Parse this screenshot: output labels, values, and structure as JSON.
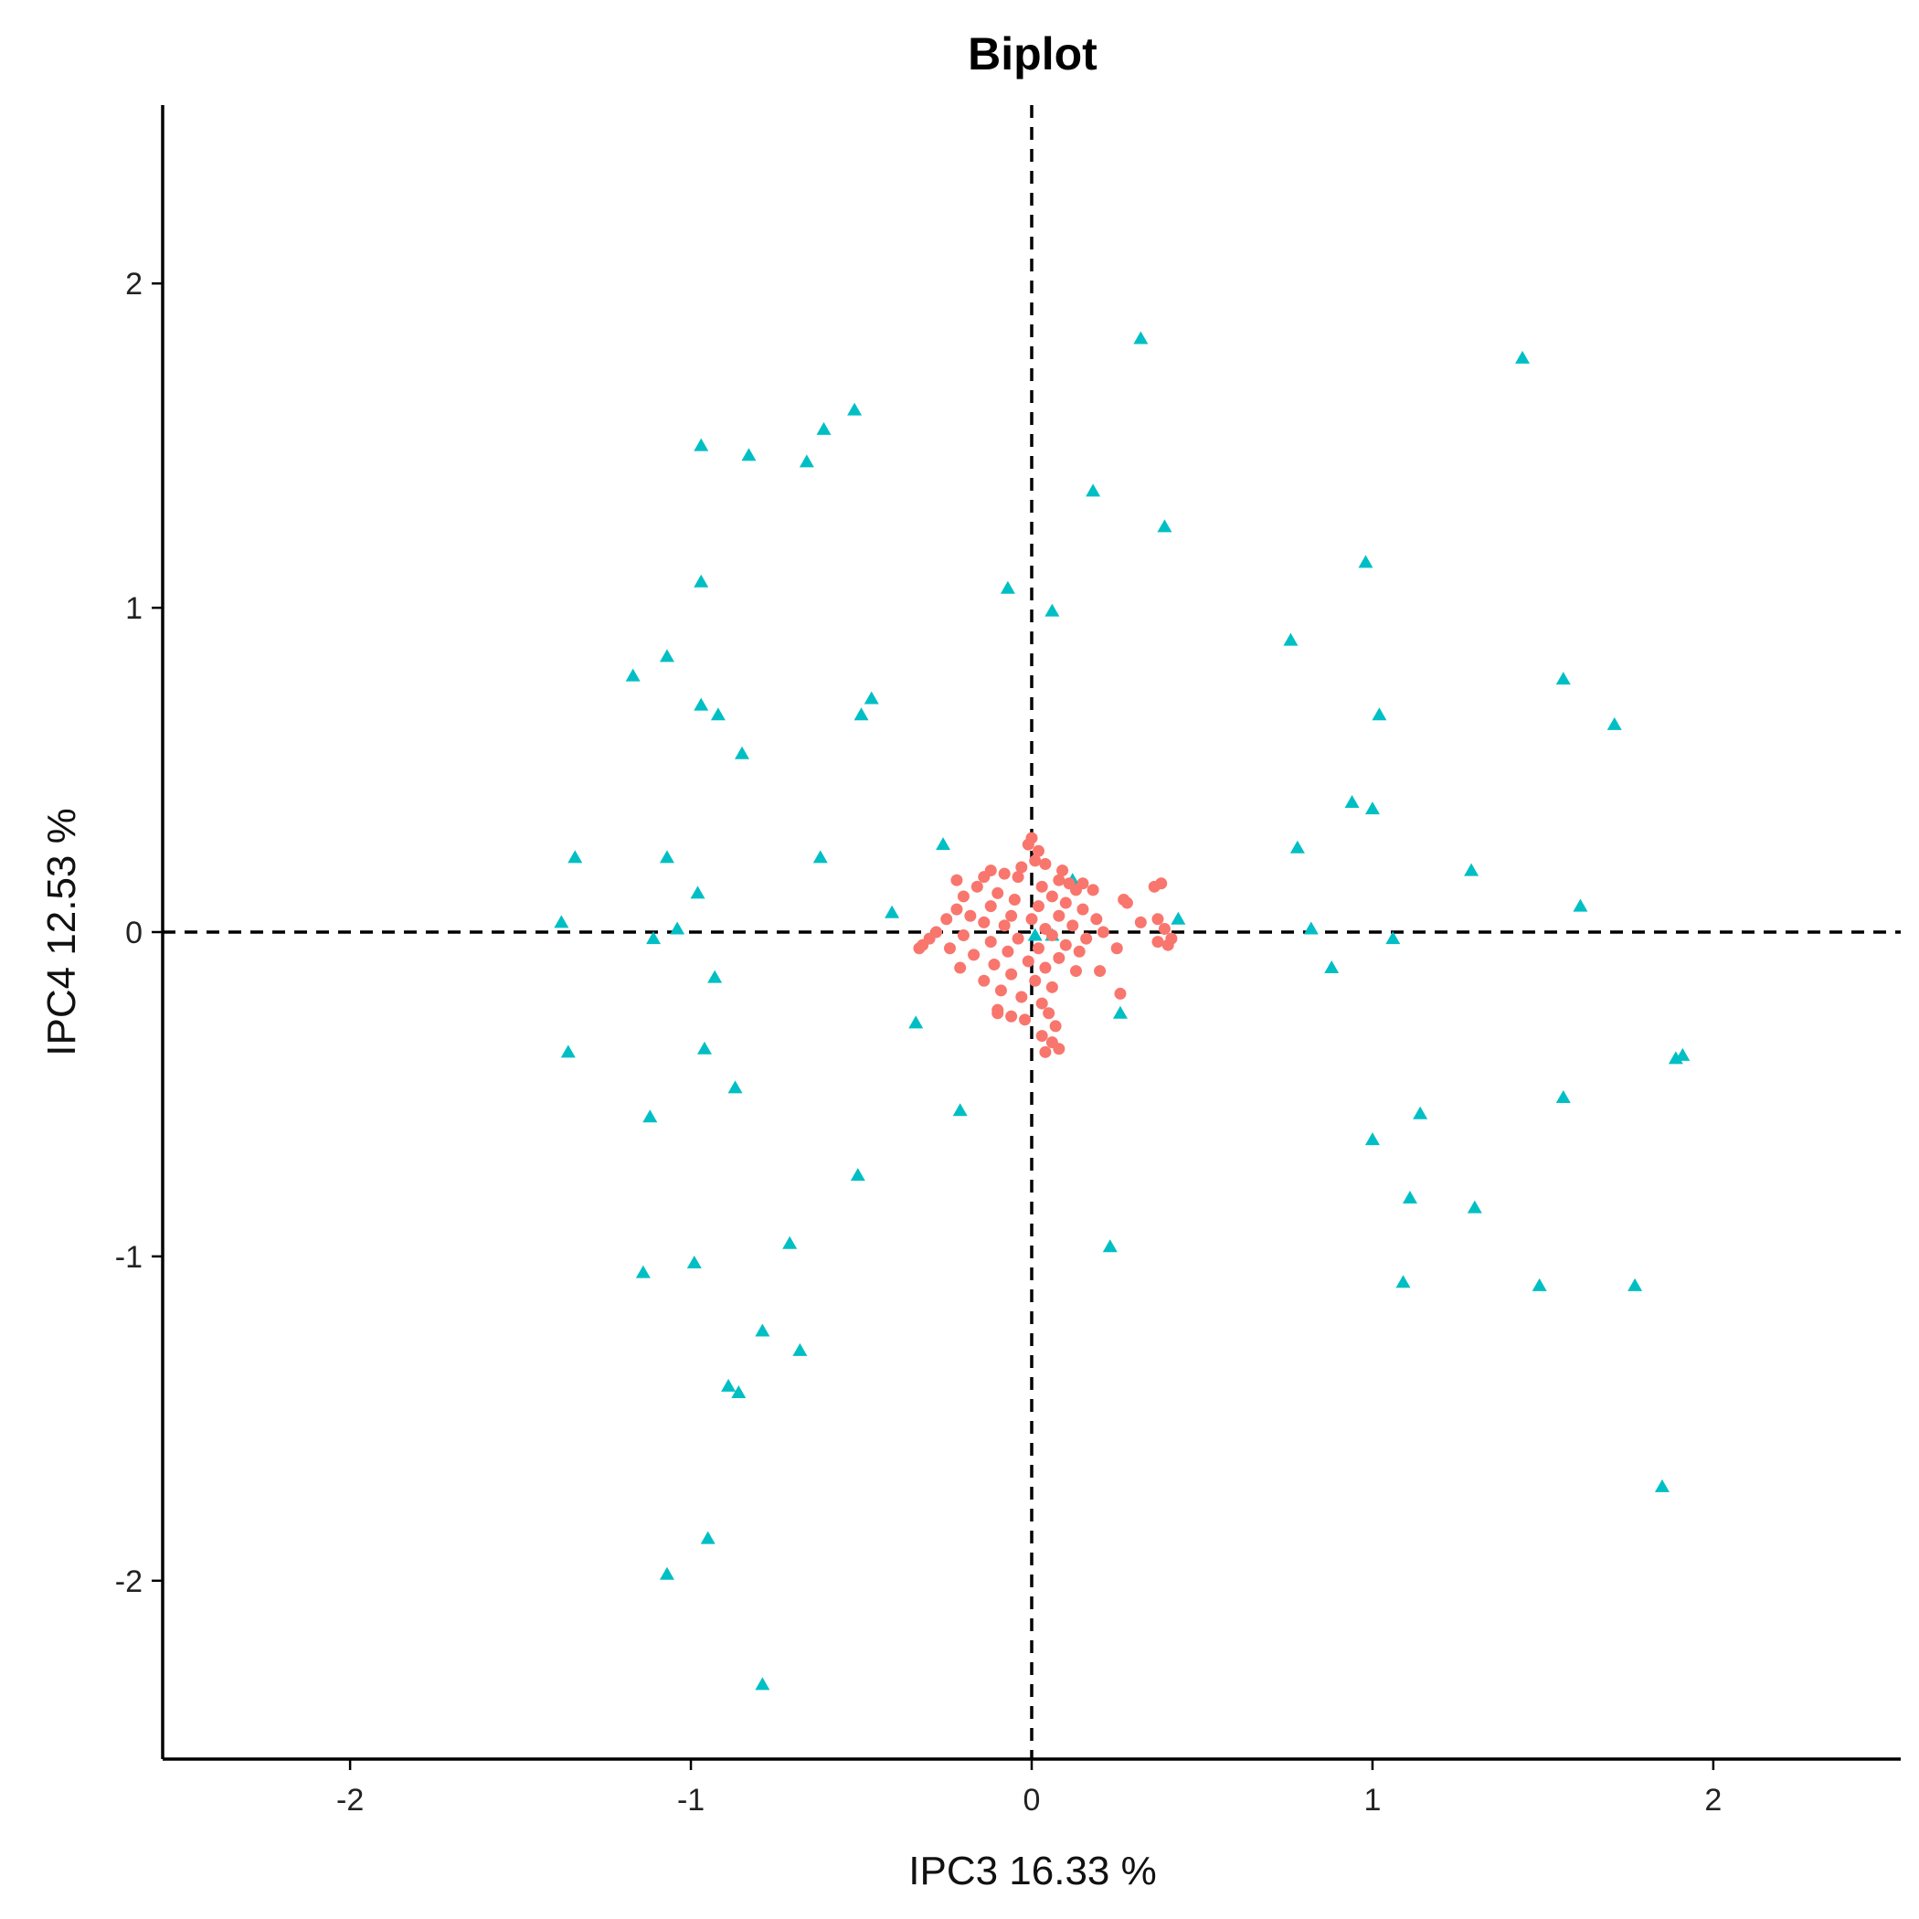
{
  "chart_data": {
    "type": "scatter",
    "title": "Biplot",
    "xlabel": "IPC3 16.33 %",
    "ylabel": "IPC4 12.53 %",
    "xlim": [
      -2.55,
      2.55
    ],
    "ylim": [
      -2.55,
      2.55
    ],
    "xticks": [
      -2,
      -1,
      0,
      1,
      2
    ],
    "yticks": [
      -2,
      -1,
      0,
      1,
      2
    ],
    "xtick_labels": [
      "-2",
      "-1",
      "0",
      "1",
      "2"
    ],
    "ytick_labels": [
      "-2",
      "-1",
      "0",
      "1",
      "2"
    ],
    "reference_lines": {
      "x": 0,
      "y": 0,
      "style": "dashed"
    },
    "grid": false,
    "legend": "none",
    "series": [
      {
        "marker": "triangle",
        "color": "#00BFC4",
        "points": [
          [
            0.32,
            1.83
          ],
          [
            1.44,
            1.77
          ],
          [
            -0.52,
            1.61
          ],
          [
            -0.61,
            1.55
          ],
          [
            -0.66,
            1.45
          ],
          [
            -0.83,
            1.47
          ],
          [
            -0.97,
            1.5
          ],
          [
            0.18,
            1.36
          ],
          [
            0.39,
            1.25
          ],
          [
            -0.07,
            1.06
          ],
          [
            0.06,
            0.99
          ],
          [
            0.98,
            1.14
          ],
          [
            -0.97,
            1.08
          ],
          [
            0.76,
            0.9
          ],
          [
            -1.07,
            0.85
          ],
          [
            -1.17,
            0.79
          ],
          [
            1.56,
            0.78
          ],
          [
            -0.97,
            0.7
          ],
          [
            -0.92,
            0.67
          ],
          [
            -0.47,
            0.72
          ],
          [
            -0.5,
            0.67
          ],
          [
            1.02,
            0.67
          ],
          [
            1.71,
            0.64
          ],
          [
            -0.85,
            0.55
          ],
          [
            0.94,
            0.4
          ],
          [
            1.0,
            0.38
          ],
          [
            -0.26,
            0.27
          ],
          [
            0.78,
            0.26
          ],
          [
            -1.34,
            0.23
          ],
          [
            -1.07,
            0.23
          ],
          [
            -0.62,
            0.23
          ],
          [
            1.29,
            0.19
          ],
          [
            0.12,
            0.16
          ],
          [
            -0.98,
            0.12
          ],
          [
            1.61,
            0.08
          ],
          [
            -0.41,
            0.06
          ],
          [
            0.43,
            0.04
          ],
          [
            -1.38,
            0.03
          ],
          [
            -1.04,
            0.01
          ],
          [
            0.82,
            0.01
          ],
          [
            0.01,
            -0.01
          ],
          [
            0.06,
            -0.01
          ],
          [
            -1.11,
            -0.02
          ],
          [
            1.06,
            -0.02
          ],
          [
            0.88,
            -0.11
          ],
          [
            -0.93,
            -0.14
          ],
          [
            0.26,
            -0.25
          ],
          [
            -0.34,
            -0.28
          ],
          [
            -0.96,
            -0.36
          ],
          [
            -1.36,
            -0.37
          ],
          [
            1.89,
            -0.39
          ],
          [
            1.91,
            -0.38
          ],
          [
            -0.87,
            -0.48
          ],
          [
            1.56,
            -0.51
          ],
          [
            -0.21,
            -0.55
          ],
          [
            1.14,
            -0.56
          ],
          [
            -1.12,
            -0.57
          ],
          [
            1.0,
            -0.64
          ],
          [
            -0.51,
            -0.75
          ],
          [
            1.11,
            -0.82
          ],
          [
            1.3,
            -0.85
          ],
          [
            -0.71,
            -0.96
          ],
          [
            0.23,
            -0.97
          ],
          [
            -0.99,
            -1.02
          ],
          [
            -1.14,
            -1.05
          ],
          [
            1.09,
            -1.08
          ],
          [
            1.49,
            -1.09
          ],
          [
            1.77,
            -1.09
          ],
          [
            -0.79,
            -1.23
          ],
          [
            -0.68,
            -1.29
          ],
          [
            -0.89,
            -1.4
          ],
          [
            -0.86,
            -1.42
          ],
          [
            1.85,
            -1.71
          ],
          [
            -0.95,
            -1.87
          ],
          [
            -1.07,
            -1.98
          ],
          [
            -0.79,
            -2.32
          ]
        ]
      },
      {
        "marker": "circle",
        "color": "#F8766D",
        "points": [
          [
            0.0,
            0.29
          ],
          [
            -0.01,
            0.27
          ],
          [
            0.02,
            0.25
          ],
          [
            0.01,
            0.22
          ],
          [
            -0.03,
            0.2
          ],
          [
            0.04,
            0.21
          ],
          [
            -0.08,
            0.18
          ],
          [
            0.08,
            0.16
          ],
          [
            -0.14,
            0.17
          ],
          [
            0.11,
            0.15
          ],
          [
            -0.16,
            0.14
          ],
          [
            0.13,
            0.13
          ],
          [
            -0.1,
            0.12
          ],
          [
            0.03,
            0.14
          ],
          [
            -0.05,
            0.1
          ],
          [
            0.06,
            0.11
          ],
          [
            -0.2,
            0.11
          ],
          [
            0.1,
            0.09
          ],
          [
            -0.12,
            0.08
          ],
          [
            0.02,
            0.08
          ],
          [
            -0.22,
            0.07
          ],
          [
            0.15,
            0.07
          ],
          [
            -0.18,
            0.05
          ],
          [
            0.08,
            0.05
          ],
          [
            -0.06,
            0.05
          ],
          [
            0.0,
            0.04
          ],
          [
            -0.25,
            0.04
          ],
          [
            0.19,
            0.04
          ],
          [
            -0.14,
            0.03
          ],
          [
            0.12,
            0.02
          ],
          [
            -0.08,
            0.02
          ],
          [
            0.04,
            0.01
          ],
          [
            -0.28,
            0.0
          ],
          [
            0.21,
            0.0
          ],
          [
            -0.2,
            -0.01
          ],
          [
            0.06,
            -0.01
          ],
          [
            -0.04,
            -0.02
          ],
          [
            0.16,
            -0.02
          ],
          [
            -0.3,
            -0.02
          ],
          [
            -0.12,
            -0.03
          ],
          [
            0.1,
            -0.04
          ],
          [
            -0.24,
            -0.05
          ],
          [
            0.02,
            -0.05
          ],
          [
            -0.07,
            -0.06
          ],
          [
            0.14,
            -0.06
          ],
          [
            -0.32,
            -0.04
          ],
          [
            -0.17,
            -0.07
          ],
          [
            0.08,
            -0.08
          ],
          [
            -0.01,
            -0.09
          ],
          [
            -0.11,
            -0.1
          ],
          [
            0.04,
            -0.11
          ],
          [
            -0.21,
            -0.11
          ],
          [
            0.13,
            -0.12
          ],
          [
            -0.06,
            -0.13
          ],
          [
            0.01,
            -0.15
          ],
          [
            -0.14,
            -0.15
          ],
          [
            0.06,
            -0.17
          ],
          [
            -0.09,
            -0.18
          ],
          [
            -0.03,
            -0.2
          ],
          [
            0.03,
            -0.22
          ],
          [
            -0.1,
            -0.24
          ],
          [
            0.05,
            -0.25
          ],
          [
            -0.02,
            -0.27
          ],
          [
            0.07,
            -0.29
          ],
          [
            0.03,
            -0.32
          ],
          [
            0.06,
            -0.34
          ],
          [
            0.08,
            -0.36
          ],
          [
            0.04,
            -0.37
          ],
          [
            -0.1,
            -0.25
          ],
          [
            -0.06,
            -0.26
          ],
          [
            0.28,
            0.09
          ],
          [
            0.32,
            0.03
          ],
          [
            0.25,
            -0.05
          ],
          [
            0.2,
            -0.12
          ],
          [
            0.26,
            -0.19
          ],
          [
            0.37,
            0.04
          ],
          [
            0.39,
            0.01
          ],
          [
            0.41,
            -0.02
          ],
          [
            0.37,
            -0.03
          ],
          [
            0.4,
            -0.04
          ],
          [
            0.36,
            0.14
          ],
          [
            0.38,
            0.15
          ],
          [
            0.27,
            0.1
          ],
          [
            0.15,
            0.15
          ],
          [
            0.18,
            0.13
          ],
          [
            -0.22,
            0.16
          ],
          [
            -0.12,
            0.19
          ],
          [
            0.09,
            0.19
          ],
          [
            -0.04,
            0.17
          ],
          [
            -0.33,
            -0.05
          ]
        ]
      }
    ]
  }
}
